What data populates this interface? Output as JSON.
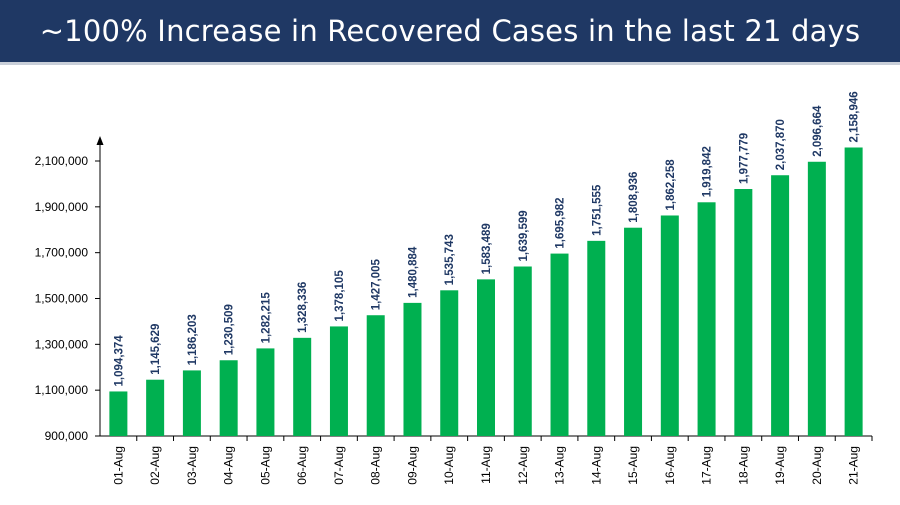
{
  "header": {
    "title": "~100% Increase in Recovered Cases in the last 21 days"
  },
  "colors": {
    "header_bg": "#1f3864",
    "bar": "#00b050",
    "data_label": "#1f3864"
  },
  "chart_data": {
    "type": "bar",
    "title": "",
    "xlabel": "",
    "ylabel": "",
    "ylim": [
      900000,
      2100000
    ],
    "yticks": [
      900000,
      1100000,
      1300000,
      1500000,
      1700000,
      1900000,
      2100000
    ],
    "ytick_labels": [
      "900,000",
      "1,100,000",
      "1,300,000",
      "1,500,000",
      "1,700,000",
      "1,900,000",
      "2,100,000"
    ],
    "grid": false,
    "legend": "none",
    "categories": [
      "01-Aug",
      "02-Aug",
      "03-Aug",
      "04-Aug",
      "05-Aug",
      "06-Aug",
      "07-Aug",
      "08-Aug",
      "09-Aug",
      "10-Aug",
      "11-Aug",
      "12-Aug",
      "13-Aug",
      "14-Aug",
      "15-Aug",
      "16-Aug",
      "17-Aug",
      "18-Aug",
      "19-Aug",
      "20-Aug",
      "21-Aug"
    ],
    "values": [
      1094374,
      1145629,
      1186203,
      1230509,
      1282215,
      1328336,
      1378105,
      1427005,
      1480884,
      1535743,
      1583489,
      1639599,
      1695982,
      1751555,
      1808936,
      1862258,
      1919842,
      1977779,
      2037870,
      2096664,
      2158946
    ],
    "value_labels": [
      "1,094,374",
      "1,145,629",
      "1,186,203",
      "1,230,509",
      "1,282,215",
      "1,328,336",
      "1,378,105",
      "1,427,005",
      "1,480,884",
      "1,535,743",
      "1,583,489",
      "1,639,599",
      "1,695,982",
      "1,751,555",
      "1,808,936",
      "1,862,258",
      "1,919,842",
      "1,977,779",
      "2,037,870",
      "2,096,664",
      "2,158,946"
    ]
  }
}
